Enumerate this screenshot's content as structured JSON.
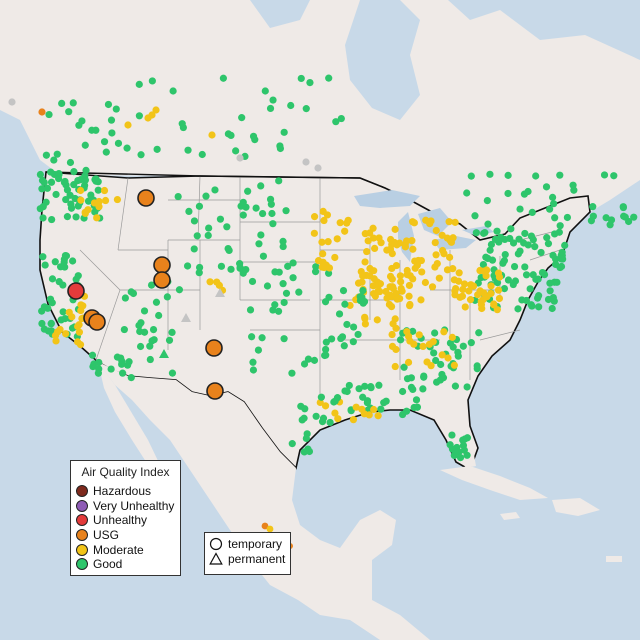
{
  "legend": {
    "title": "Air Quality Index",
    "categories": [
      {
        "label": "Hazardous",
        "color": "#7e2a1d"
      },
      {
        "label": "Very Unhealthy",
        "color": "#8e5bb5"
      },
      {
        "label": "Unhealthy",
        "color": "#e33b3b"
      },
      {
        "label": "USG",
        "color": "#e8821c"
      },
      {
        "label": "Moderate",
        "color": "#f2c418"
      },
      {
        "label": "Good",
        "color": "#2ec56b"
      }
    ],
    "types": [
      {
        "label": "temporary",
        "shape": "circle"
      },
      {
        "label": "permanent",
        "shape": "triangle"
      }
    ]
  },
  "colors": {
    "ocean": "#c8d9e8",
    "land": "#efeae7",
    "lakes": "#b9cfe3",
    "border": "#111111",
    "state_lines": "#9a9a9a",
    "no_data": "#c4c4c4"
  }
}
